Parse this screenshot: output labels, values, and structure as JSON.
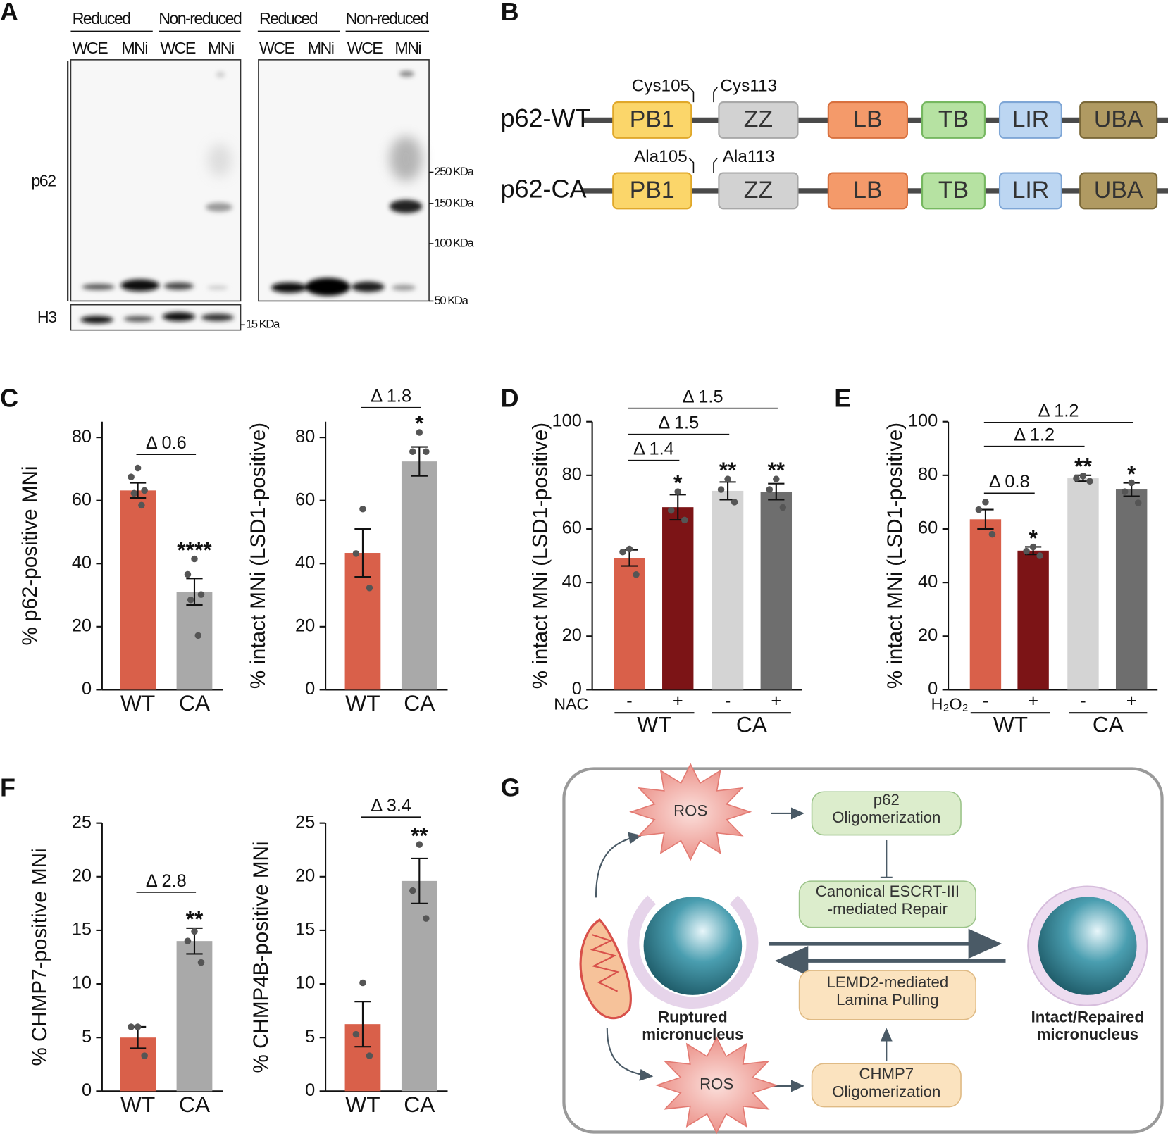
{
  "panel_labels": [
    "A",
    "B",
    "C",
    "D",
    "E",
    "F",
    "G"
  ],
  "panel_a": {
    "gels": [
      {
        "conditions": [
          "Reduced",
          "Non-reduced"
        ],
        "lanes": [
          "WCE",
          "MNi",
          "WCE",
          "MNi"
        ]
      },
      {
        "conditions": [
          "Reduced",
          "Non-reduced"
        ],
        "lanes": [
          "WCE",
          "MNi",
          "WCE",
          "MNi"
        ]
      }
    ],
    "blots": [
      "p62",
      "H3"
    ],
    "markers": [
      "250 KDa",
      "150 KDa",
      "100 KDa",
      "50 KDa",
      "15 KDa"
    ]
  },
  "panel_b": {
    "constructs": [
      {
        "name": "p62-WT",
        "sites": [
          "Cys105",
          "Cys113"
        ],
        "domains": [
          "PB1",
          "ZZ",
          "LB",
          "TB",
          "LIR",
          "UBA"
        ]
      },
      {
        "name": "p62-CA",
        "sites": [
          "Ala105",
          "Ala113"
        ],
        "domains": [
          "PB1",
          "ZZ",
          "LB",
          "TB",
          "LIR",
          "UBA"
        ]
      }
    ]
  },
  "panel_g": {
    "ros": [
      "ROS",
      "ROS"
    ],
    "boxes": [
      [
        "p62",
        "Oligomerization"
      ],
      [
        "Canonical ESCRT-III",
        "-mediated Repair"
      ],
      [
        "LEMD2-mediated",
        "Lamina Pulling"
      ],
      [
        "CHMP7",
        "Oligomerization"
      ]
    ],
    "labels": [
      [
        "Ruptured",
        "micronucleus"
      ],
      [
        "Intact/Repaired",
        "micronucleus"
      ]
    ]
  },
  "chart_data": [
    {
      "type": "bar",
      "y_label": "% p62-positive MNi",
      "categories": [
        "WT",
        "CA"
      ],
      "values": [
        63.2,
        31.1
      ],
      "errors": [
        2.4,
        4.2
      ],
      "points": [
        [
          70.3,
          67.5,
          63.2,
          62.3,
          58.5
        ],
        [
          41.5,
          36.6,
          30.2,
          28.5,
          17.2
        ]
      ],
      "colors": [
        "#d9604a",
        "#a9a9a9"
      ],
      "ylim": [
        0,
        85
      ],
      "yticks": [
        0,
        20,
        40,
        60,
        80
      ],
      "significance": [
        null,
        "****"
      ],
      "comparisons": [
        "Δ 0.6"
      ]
    },
    {
      "type": "bar",
      "y_label": "% intact MNi (LSD1-positive)",
      "categories": [
        "WT",
        "CA"
      ],
      "values": [
        43.4,
        72.4
      ],
      "errors": [
        7.6,
        4.6
      ],
      "points": [
        [
          57.3,
          43.2,
          32.3
        ],
        [
          81.6,
          75.5,
          75.5
        ]
      ],
      "colors": [
        "#d9604a",
        "#a9a9a9"
      ],
      "ylim": [
        0,
        85
      ],
      "yticks": [
        0,
        20,
        40,
        60,
        80
      ],
      "significance": [
        null,
        "*"
      ],
      "comparisons": [
        "Δ 1.8"
      ]
    },
    {
      "type": "bar",
      "y_label": "% intact MNi (LSD1-positive)",
      "categories": [
        "-",
        "+",
        "-",
        "+"
      ],
      "treatment_label": "NAC",
      "groups": [
        "WT",
        "CA"
      ],
      "values": [
        49.2,
        68.1,
        74.2,
        73.9
      ],
      "errors": [
        3.0,
        4.7,
        3.3,
        3.0
      ],
      "points": [
        [
          52.5,
          51.4,
          43.0
        ],
        [
          73.9,
          66.9,
          63.3
        ],
        [
          78.6,
          74.7,
          70.0
        ],
        [
          78.6,
          74.7,
          68.0
        ]
      ],
      "colors": [
        "#d9604a",
        "#7c1416",
        "#d4d4d4",
        "#6e6e6e"
      ],
      "ylim": [
        0,
        100
      ],
      "yticks": [
        0,
        20,
        40,
        60,
        80,
        100
      ],
      "significance": [
        null,
        "*",
        "**",
        "**"
      ],
      "comparisons": [
        "Δ 1.4",
        "Δ 1.5",
        "Δ 1.5"
      ]
    },
    {
      "type": "bar",
      "y_label": "% intact MNi (LSD1-positive)",
      "categories": [
        "-",
        "+",
        "-",
        "+"
      ],
      "treatment_label": "H₂O₂",
      "groups": [
        "WT",
        "CA"
      ],
      "values": [
        63.6,
        51.9,
        78.9,
        74.7
      ],
      "errors": [
        3.6,
        1.4,
        1.1,
        2.5
      ],
      "points": [
        [
          70.0,
          67.2,
          58.0
        ],
        [
          53.3,
          51.7,
          50.0
        ],
        [
          79.8,
          78.9,
          77.8
        ],
        [
          77.2,
          73.9,
          69.7
        ]
      ],
      "colors": [
        "#d9604a",
        "#7c1416",
        "#d4d4d4",
        "#6e6e6e"
      ],
      "ylim": [
        0,
        100
      ],
      "yticks": [
        0,
        20,
        40,
        60,
        80,
        100
      ],
      "significance": [
        null,
        "*",
        "**",
        "*"
      ],
      "comparisons": [
        "Δ 0.8",
        "Δ 1.2",
        "Δ 1.2"
      ]
    },
    {
      "type": "bar",
      "y_label": "% CHMP7-positive MNi",
      "categories": [
        "WT",
        "CA"
      ],
      "values": [
        5.0,
        14.0
      ],
      "errors": [
        1.0,
        1.2
      ],
      "points": [
        [
          6.0,
          6.0,
          3.3
        ],
        [
          14.9,
          14.0,
          12.0
        ]
      ],
      "colors": [
        "#d9604a",
        "#a9a9a9"
      ],
      "ylim": [
        0,
        25
      ],
      "yticks": [
        0,
        5,
        10,
        15,
        20,
        25
      ],
      "significance": [
        null,
        "**"
      ],
      "comparisons": [
        "Δ 2.8"
      ]
    },
    {
      "type": "bar",
      "y_label": "% CHMP4B-positive MNi",
      "categories": [
        "WT",
        "CA"
      ],
      "values": [
        6.25,
        19.6
      ],
      "errors": [
        2.1,
        2.1
      ],
      "points": [
        [
          10.1,
          5.3,
          3.3
        ],
        [
          23.0,
          18.7,
          16.1
        ]
      ],
      "colors": [
        "#d9604a",
        "#a9a9a9"
      ],
      "ylim": [
        0,
        25
      ],
      "yticks": [
        0,
        5,
        10,
        15,
        20,
        25
      ],
      "significance": [
        null,
        "**"
      ],
      "comparisons": [
        "Δ 3.4"
      ]
    }
  ]
}
